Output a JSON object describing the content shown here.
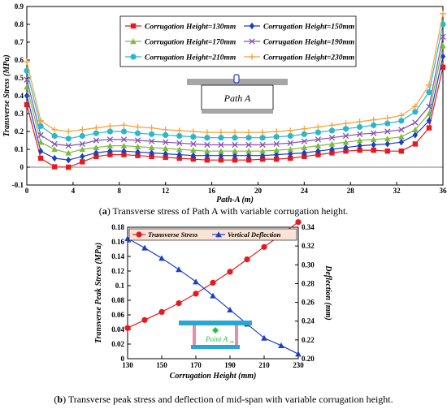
{
  "captions": {
    "a_label": "a",
    "a_text": " Transverse stress of Path A with variable corrugation height.",
    "b_label": "b",
    "b_text": " Transverse peak stress and deflection of mid-span with variable corrugation height."
  },
  "inset_a_label": "Path A",
  "inset_b_label": "Point A",
  "inset_b_sub": "m",
  "chart_data": [
    {
      "type": "line",
      "xlabel": "Path-A (m)",
      "ylabel": "Transverse Stress (MPa)",
      "xlim": [
        0,
        36
      ],
      "ylim": [
        -0.1,
        0.9
      ],
      "xticks": [
        "0",
        "4",
        "8",
        "12",
        "16",
        "20",
        "24",
        "28",
        "32",
        "36"
      ],
      "yticks": [
        "-0.1",
        "0",
        "0.1",
        "0.2",
        "0.3",
        "0.4",
        "0.5",
        "0.6",
        "0.7",
        "0.8",
        "0.9"
      ],
      "grid": false,
      "legend": "top-center",
      "x": [
        0,
        1.2,
        2.4,
        3.6,
        4.8,
        6,
        7.2,
        8.4,
        9.6,
        10.8,
        12,
        13.2,
        14.4,
        15.6,
        16.8,
        18,
        19.2,
        20.4,
        21.6,
        22.8,
        24,
        25.2,
        26.4,
        27.6,
        28.8,
        30,
        31.2,
        32.4,
        33.6,
        34.8,
        36
      ],
      "series": [
        {
          "name": "Corrugation Height=130mm",
          "color": "#e8191c",
          "marker": "square",
          "values": [
            0.35,
            0.05,
            0.002,
            0.0,
            0.03,
            0.06,
            0.07,
            0.07,
            0.065,
            0.06,
            0.055,
            0.05,
            0.045,
            0.04,
            0.04,
            0.04,
            0.04,
            0.045,
            0.045,
            0.05,
            0.06,
            0.07,
            0.08,
            0.09,
            0.095,
            0.095,
            0.09,
            0.09,
            0.13,
            0.22,
            0.56
          ]
        },
        {
          "name": "Corrugation Height=150mm",
          "color": "#1a3fc8",
          "marker": "diamond",
          "values": [
            0.4,
            0.09,
            0.05,
            0.04,
            0.06,
            0.08,
            0.09,
            0.09,
            0.085,
            0.08,
            0.075,
            0.07,
            0.065,
            0.065,
            0.065,
            0.065,
            0.065,
            0.065,
            0.07,
            0.075,
            0.08,
            0.09,
            0.1,
            0.11,
            0.12,
            0.125,
            0.13,
            0.14,
            0.18,
            0.26,
            0.62
          ]
        },
        {
          "name": "Corrugation Height=170mm",
          "color": "#7dbb3a",
          "marker": "triangle",
          "values": [
            0.45,
            0.14,
            0.1,
            0.08,
            0.1,
            0.11,
            0.12,
            0.12,
            0.115,
            0.11,
            0.105,
            0.1,
            0.095,
            0.09,
            0.09,
            0.09,
            0.09,
            0.09,
            0.095,
            0.1,
            0.11,
            0.12,
            0.13,
            0.14,
            0.15,
            0.155,
            0.16,
            0.17,
            0.21,
            0.3,
            0.68
          ]
        },
        {
          "name": "Corrugation Height=190mm",
          "color": "#8a4fb0",
          "marker": "x",
          "values": [
            0.49,
            0.18,
            0.13,
            0.12,
            0.13,
            0.15,
            0.155,
            0.155,
            0.15,
            0.145,
            0.14,
            0.135,
            0.13,
            0.125,
            0.125,
            0.125,
            0.125,
            0.125,
            0.13,
            0.135,
            0.145,
            0.155,
            0.165,
            0.175,
            0.185,
            0.19,
            0.2,
            0.21,
            0.25,
            0.34,
            0.73
          ]
        },
        {
          "name": "Corrugation Height=210mm",
          "color": "#29b7d0",
          "marker": "circle",
          "values": [
            0.54,
            0.23,
            0.175,
            0.16,
            0.175,
            0.19,
            0.2,
            0.2,
            0.19,
            0.185,
            0.18,
            0.175,
            0.17,
            0.165,
            0.165,
            0.165,
            0.165,
            0.165,
            0.17,
            0.175,
            0.185,
            0.195,
            0.205,
            0.215,
            0.225,
            0.235,
            0.245,
            0.26,
            0.31,
            0.42,
            0.8
          ]
        },
        {
          "name": "Corrugation Height=230mm",
          "color": "#f3a23b",
          "marker": "plus",
          "values": [
            0.59,
            0.26,
            0.21,
            0.2,
            0.21,
            0.22,
            0.23,
            0.235,
            0.225,
            0.22,
            0.21,
            0.205,
            0.2,
            0.195,
            0.195,
            0.195,
            0.195,
            0.195,
            0.2,
            0.205,
            0.215,
            0.225,
            0.235,
            0.245,
            0.255,
            0.265,
            0.275,
            0.29,
            0.34,
            0.46,
            0.86
          ]
        }
      ]
    },
    {
      "type": "line",
      "xlabel": "Corrugation Height (mm)",
      "ylabel_left": "Transverse Peak Stress (MPa)",
      "ylabel_right": "Deflection (mm)",
      "x": [
        130,
        140,
        150,
        160,
        170,
        180,
        190,
        200,
        210,
        220,
        230
      ],
      "xlim": [
        130,
        230
      ],
      "ylim_left": [
        0,
        0.18
      ],
      "ylim_right": [
        0.2,
        0.34
      ],
      "xticks": [
        "130",
        "150",
        "170",
        "190",
        "210",
        "230"
      ],
      "yticks_left": [
        "0",
        "0.02",
        "0.04",
        "0.06",
        "0.08",
        "0.1",
        "0.12",
        "0.14",
        "0.16",
        "0.18"
      ],
      "yticks_right": [
        "0.20",
        "0.22",
        "0.24",
        "0.26",
        "0.28",
        "0.30",
        "0.32",
        "0.34"
      ],
      "legend": "top",
      "series": [
        {
          "name": "Transverse Stress",
          "axis": "left",
          "color": "#e8191c",
          "marker": "circle",
          "values": [
            0.042,
            0.053,
            0.064,
            0.076,
            0.089,
            0.104,
            0.119,
            0.136,
            0.153,
            0.17,
            0.187
          ]
        },
        {
          "name": "Vertical Deflection",
          "axis": "right",
          "color": "#1a3fc8",
          "marker": "triangle",
          "values": [
            0.328,
            0.318,
            0.307,
            0.295,
            0.282,
            0.267,
            0.252,
            0.237,
            0.222,
            0.214,
            0.205
          ]
        }
      ]
    }
  ]
}
